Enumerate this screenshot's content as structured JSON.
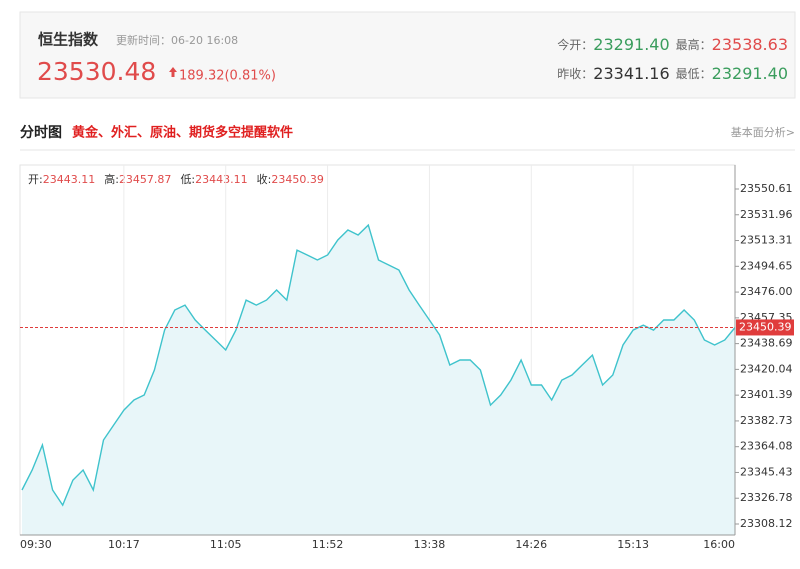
{
  "header": {
    "title": "恒生指数",
    "update_time": "更新时间：06-20 16:08",
    "price": "23530.48",
    "change": "189.32(0.81%)",
    "stats": [
      {
        "label": "今开：",
        "value": "23291.40",
        "color": "#3a9d5d"
      },
      {
        "label": "最高：",
        "value": "23538.63",
        "color": "#e04b4b"
      },
      {
        "label": "昨收：",
        "value": "23341.16",
        "color": "#333333"
      },
      {
        "label": "最低：",
        "value": "23291.40",
        "color": "#3a9d5d"
      }
    ]
  },
  "section": {
    "title": "分时图",
    "promo": "黄金、外汇、原油、期货多空提醒软件",
    "link": "基本面分析>"
  },
  "chart_data": {
    "type": "line",
    "info": [
      {
        "label": "开:",
        "value": "23443.11"
      },
      {
        "label": "高:",
        "value": "23457.87"
      },
      {
        "label": "低:",
        "value": "23443.11"
      },
      {
        "label": "收:",
        "value": "23450.39"
      }
    ],
    "categories": [
      "09:30",
      null,
      null,
      null,
      null,
      null,
      null,
      null,
      null,
      null,
      "10:17",
      null,
      null,
      null,
      null,
      null,
      null,
      null,
      null,
      null,
      "11:05",
      null,
      null,
      null,
      null,
      null,
      null,
      null,
      null,
      null,
      "11:52",
      null,
      null,
      null,
      null,
      null,
      null,
      null,
      null,
      null,
      "13:38",
      null,
      null,
      null,
      null,
      null,
      null,
      null,
      null,
      null,
      "14:26",
      null,
      null,
      null,
      null,
      null,
      null,
      null,
      null,
      null,
      "15:13",
      null,
      null,
      null,
      null,
      null,
      null,
      null,
      null,
      null,
      "16:00"
    ],
    "values": [
      23332.7,
      23347.2,
      23365.3,
      23332.7,
      23321.8,
      23339.9,
      23347.2,
      23332.7,
      23368.9,
      23379.8,
      23390.6,
      23397.9,
      23401.5,
      23419.6,
      23448.5,
      23463.0,
      23466.6,
      23455.8,
      23448.5,
      23441.3,
      23434.1,
      23448.5,
      23470.2,
      23466.6,
      23470.2,
      23477.5,
      23470.2,
      23506.4,
      23502.8,
      23499.2,
      23502.8,
      23513.7,
      23520.9,
      23517.3,
      23524.5,
      23499.2,
      23495.6,
      23492.0,
      23477.5,
      23466.6,
      23455.8,
      23444.9,
      23423.2,
      23426.8,
      23426.8,
      23419.6,
      23394.2,
      23401.5,
      23412.3,
      23426.8,
      23408.7,
      23408.7,
      23397.9,
      23412.3,
      23416.0,
      23423.2,
      23430.4,
      23408.7,
      23416.0,
      23437.7,
      23448.5,
      23452.1,
      23448.5,
      23455.8,
      23455.8,
      23463.0,
      23455.8,
      23441.3,
      23437.7,
      23441.3,
      23450.39
    ],
    "color": "#3fc3cc",
    "fill_color": "#e8f6f9",
    "ylim": [
      23300.16,
      23567.98
    ],
    "yticks": [
      23550.61,
      23531.96,
      23513.31,
      23494.65,
      {
        "value": 23476,
        "label": "23476.00"
      },
      23457.35,
      23438.69,
      23420.04,
      23401.39,
      23382.73,
      23364.08,
      23345.43,
      23326.78,
      23308.12
    ],
    "last_price": 23450.39,
    "last_price_color": "#e03c3c",
    "grid": true
  }
}
